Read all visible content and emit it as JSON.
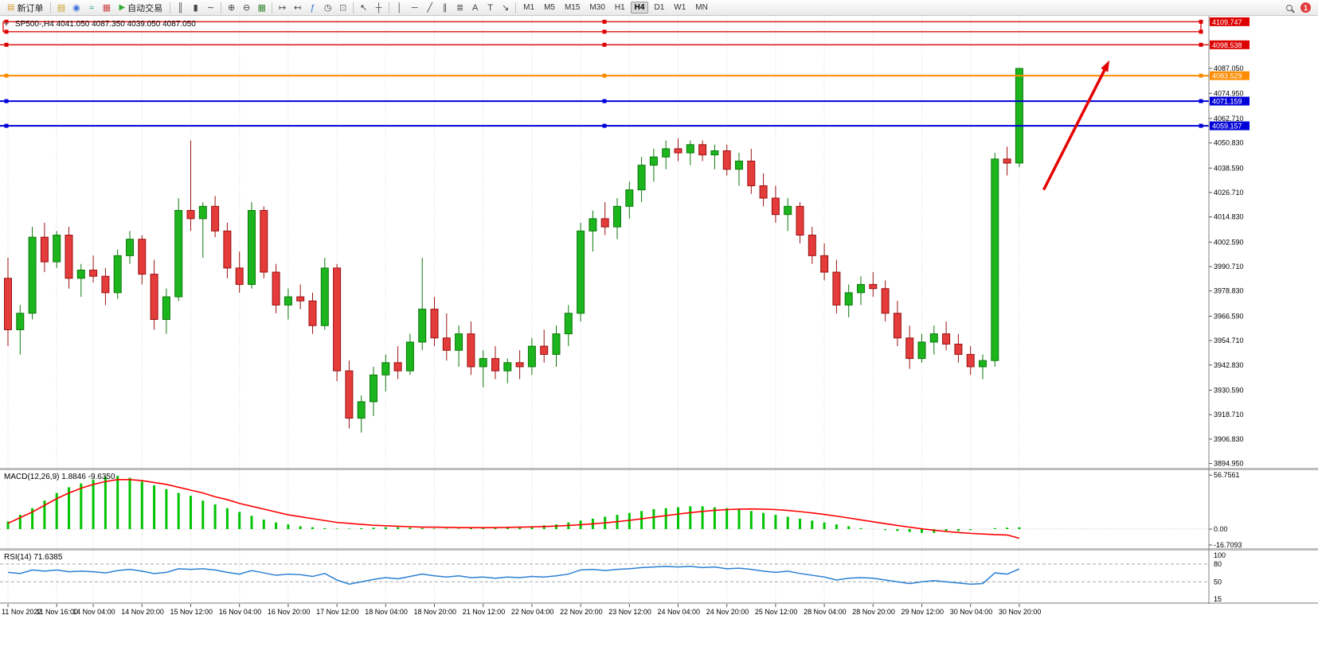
{
  "toolbar": {
    "items": [
      {
        "type": "button",
        "name": "new-order-button",
        "label": "新订单",
        "icon": "▤",
        "icon_color": "#d99a2b"
      },
      {
        "type": "sep"
      },
      {
        "type": "icon",
        "name": "market-watch-icon",
        "glyph": "▤",
        "color": "#c8a228"
      },
      {
        "type": "icon",
        "name": "data-window-icon",
        "glyph": "◉",
        "color": "#3a6fd8"
      },
      {
        "type": "icon",
        "name": "connection-icon",
        "glyph": "≈",
        "color": "#2aa198"
      },
      {
        "type": "icon",
        "name": "market-icon",
        "glyph": "▦",
        "color": "#cc4444"
      },
      {
        "type": "button",
        "name": "algo-trading-button",
        "label": "自动交易",
        "icon": "▶",
        "icon_color": "#2eaa2e"
      },
      {
        "type": "sep"
      },
      {
        "type": "icon",
        "name": "bar-chart-icon",
        "glyph": "║",
        "color": "#444444"
      },
      {
        "type": "icon",
        "name": "candlestick-chart-icon",
        "glyph": "▮",
        "color": "#444444"
      },
      {
        "type": "icon",
        "name": "line-chart-icon",
        "glyph": "∼",
        "color": "#444444"
      },
      {
        "type": "sep"
      },
      {
        "type": "icon",
        "name": "zoom-in-icon",
        "glyph": "⊕",
        "color": "#444444"
      },
      {
        "type": "icon",
        "name": "zoom-out-icon",
        "glyph": "⊖",
        "color": "#444444"
      },
      {
        "type": "icon",
        "name": "tile-windows-icon",
        "glyph": "▦",
        "color": "#3a8f3a"
      },
      {
        "type": "sep"
      },
      {
        "type": "icon",
        "name": "auto-scroll-icon",
        "glyph": "↦",
        "color": "#444444"
      },
      {
        "type": "icon",
        "name": "chart-shift-icon",
        "glyph": "↤",
        "color": "#444444"
      },
      {
        "type": "icon",
        "name": "indicators-icon",
        "glyph": "ƒ",
        "color": "#2a6fd0"
      },
      {
        "type": "icon",
        "name": "period-icon",
        "glyph": "◷",
        "color": "#444444"
      },
      {
        "type": "icon",
        "name": "template-icon",
        "glyph": "⊡",
        "color": "#777777"
      },
      {
        "type": "sep"
      },
      {
        "type": "icon",
        "name": "cursor-icon",
        "glyph": "↖",
        "color": "#444444"
      },
      {
        "type": "icon",
        "name": "crosshair-icon",
        "glyph": "┼",
        "color": "#444444"
      },
      {
        "type": "sep"
      },
      {
        "type": "icon",
        "name": "vertical-line-icon",
        "glyph": "│",
        "color": "#444444"
      },
      {
        "type": "icon",
        "name": "horizontal-line-icon",
        "glyph": "─",
        "color": "#444444"
      },
      {
        "type": "icon",
        "name": "trendline-icon",
        "glyph": "╱",
        "color": "#444444"
      },
      {
        "type": "icon",
        "name": "channel-icon",
        "glyph": "∥",
        "color": "#444444"
      },
      {
        "type": "icon",
        "name": "fibonacci-icon",
        "glyph": "≣",
        "color": "#444444"
      },
      {
        "type": "icon",
        "name": "text-icon",
        "glyph": "A",
        "color": "#444444"
      },
      {
        "type": "icon",
        "name": "label-icon",
        "glyph": "T",
        "color": "#444444"
      },
      {
        "type": "icon",
        "name": "arrows-icon",
        "glyph": "↘",
        "color": "#444444"
      },
      {
        "type": "sep"
      }
    ],
    "timeframes": [
      "M1",
      "M5",
      "M15",
      "M30",
      "H1",
      "H4",
      "D1",
      "W1",
      "MN"
    ],
    "active_timeframe": "H4",
    "notification_count": "1"
  },
  "chart": {
    "collapse_glyph": "▼",
    "header": "SP500-,H4  4041.050 4087.350 4039.050 4087.050",
    "symbol": "SP500-",
    "period": "H4",
    "open": "4041.050",
    "high": "4087.350",
    "low": "4039.050",
    "close": "4087.050"
  },
  "chart_data": {
    "type": "candlestick",
    "title": "SP500-,H4",
    "x_labels": [
      "11 Nov 2022",
      "11 Nov 16:00",
      "14 Nov 04:00",
      "14 Nov 20:00",
      "15 Nov 12:00",
      "16 Nov 04:00",
      "16 Nov 20:00",
      "17 Nov 12:00",
      "18 Nov 04:00",
      "18 Nov 20:00",
      "21 Nov 12:00",
      "22 Nov 04:00",
      "22 Nov 20:00",
      "23 Nov 12:00",
      "24 Nov 04:00",
      "24 Nov 20:00",
      "25 Nov 12:00",
      "28 Nov 04:00",
      "28 Nov 20:00",
      "29 Nov 12:00",
      "30 Nov 04:00",
      "30 Nov 20:00"
    ],
    "x_tick_bars": [
      0,
      4,
      7,
      11,
      15,
      19,
      23,
      27,
      31,
      35,
      39,
      43,
      47,
      51,
      55,
      59,
      63,
      67,
      71,
      75,
      79,
      83
    ],
    "candles": [
      [
        3985,
        3995,
        3952,
        3960
      ],
      [
        3960,
        3972,
        3948,
        3968
      ],
      [
        3968,
        4010,
        3965,
        4005
      ],
      [
        4005,
        4012,
        3988,
        3993
      ],
      [
        3993,
        4008,
        3990,
        4006
      ],
      [
        4006,
        4010,
        3980,
        3985
      ],
      [
        3985,
        3992,
        3976,
        3989
      ],
      [
        3989,
        3996,
        3983,
        3986
      ],
      [
        3986,
        3990,
        3972,
        3978
      ],
      [
        3978,
        3999,
        3975,
        3996
      ],
      [
        3996,
        4008,
        3992,
        4004
      ],
      [
        4004,
        4006,
        3982,
        3987
      ],
      [
        3987,
        3994,
        3960,
        3965
      ],
      [
        3965,
        3980,
        3958,
        3976
      ],
      [
        3976,
        4024,
        3974,
        4018
      ],
      [
        4018,
        4052,
        4008,
        4014
      ],
      [
        4014,
        4022,
        3995,
        4020
      ],
      [
        4020,
        4025,
        4005,
        4008
      ],
      [
        4008,
        4012,
        3985,
        3990
      ],
      [
        3990,
        3998,
        3978,
        3982
      ],
      [
        3982,
        4022,
        3980,
        4018
      ],
      [
        4018,
        4020,
        3985,
        3988
      ],
      [
        3988,
        3992,
        3968,
        3972
      ],
      [
        3972,
        3980,
        3965,
        3976
      ],
      [
        3976,
        3982,
        3970,
        3974
      ],
      [
        3974,
        3978,
        3958,
        3962
      ],
      [
        3962,
        3995,
        3960,
        3990
      ],
      [
        3990,
        3992,
        3935,
        3940
      ],
      [
        3940,
        3945,
        3912,
        3917
      ],
      [
        3917,
        3928,
        3910,
        3925
      ],
      [
        3925,
        3942,
        3918,
        3938
      ],
      [
        3938,
        3948,
        3930,
        3944
      ],
      [
        3944,
        3952,
        3936,
        3940
      ],
      [
        3940,
        3958,
        3938,
        3954
      ],
      [
        3954,
        3995,
        3950,
        3970
      ],
      [
        3970,
        3976,
        3952,
        3956
      ],
      [
        3956,
        3968,
        3945,
        3950
      ],
      [
        3950,
        3962,
        3942,
        3958
      ],
      [
        3958,
        3964,
        3938,
        3942
      ],
      [
        3942,
        3950,
        3932,
        3946
      ],
      [
        3946,
        3952,
        3936,
        3940
      ],
      [
        3940,
        3946,
        3934,
        3944
      ],
      [
        3944,
        3950,
        3936,
        3942
      ],
      [
        3942,
        3956,
        3938,
        3952
      ],
      [
        3952,
        3960,
        3944,
        3948
      ],
      [
        3948,
        3962,
        3942,
        3958
      ],
      [
        3958,
        3972,
        3952,
        3968
      ],
      [
        3968,
        4012,
        3964,
        4008
      ],
      [
        4008,
        4018,
        3998,
        4014
      ],
      [
        4014,
        4022,
        4006,
        4010
      ],
      [
        4010,
        4024,
        4004,
        4020
      ],
      [
        4020,
        4032,
        4014,
        4028
      ],
      [
        4028,
        4044,
        4022,
        4040
      ],
      [
        4040,
        4048,
        4032,
        4044
      ],
      [
        4044,
        4052,
        4038,
        4048
      ],
      [
        4048,
        4053,
        4042,
        4046
      ],
      [
        4046,
        4052,
        4040,
        4050
      ],
      [
        4050,
        4052,
        4042,
        4045
      ],
      [
        4045,
        4050,
        4038,
        4047
      ],
      [
        4047,
        4050,
        4035,
        4038
      ],
      [
        4038,
        4046,
        4030,
        4042
      ],
      [
        4042,
        4048,
        4026,
        4030
      ],
      [
        4030,
        4036,
        4020,
        4024
      ],
      [
        4024,
        4030,
        4012,
        4016
      ],
      [
        4016,
        4024,
        4008,
        4020
      ],
      [
        4020,
        4022,
        4002,
        4006
      ],
      [
        4006,
        4010,
        3992,
        3996
      ],
      [
        3996,
        4002,
        3984,
        3988
      ],
      [
        3988,
        3994,
        3968,
        3972
      ],
      [
        3972,
        3982,
        3966,
        3978
      ],
      [
        3978,
        3986,
        3972,
        3982
      ],
      [
        3982,
        3988,
        3976,
        3980
      ],
      [
        3980,
        3984,
        3964,
        3968
      ],
      [
        3968,
        3974,
        3952,
        3956
      ],
      [
        3956,
        3962,
        3941,
        3946
      ],
      [
        3946,
        3958,
        3944,
        3954
      ],
      [
        3954,
        3962,
        3948,
        3958
      ],
      [
        3958,
        3964,
        3950,
        3953
      ],
      [
        3953,
        3958,
        3944,
        3948
      ],
      [
        3948,
        3952,
        3938,
        3942
      ],
      [
        3942,
        3948,
        3936,
        3945
      ],
      [
        3945,
        4046,
        3942,
        4043
      ],
      [
        4043,
        4049,
        4035,
        4041
      ],
      [
        4041.05,
        4087.35,
        4039.05,
        4087.05
      ]
    ],
    "price_axis": {
      "min": 3892.8,
      "max": 4112.6,
      "gridline_labels": [
        "4087.050",
        "4074.950",
        "4062.710",
        "4050.830",
        "4038.590",
        "4026.710",
        "4014.830",
        "4002.590",
        "3990.710",
        "3978.830",
        "3966.590",
        "3954.710",
        "3942.830",
        "3930.590",
        "3918.710",
        "3906.830",
        "3894.950"
      ]
    },
    "style": {
      "up_color": "#1db51d",
      "up_stroke": "#0b7a0b",
      "down_color": "#e43b3b",
      "down_stroke": "#9b1212"
    },
    "overlays": {
      "hlines": [
        {
          "type": "band",
          "label": "4109.747",
          "price_top": 4109.747,
          "price_bottom": 4104.9,
          "color": "#dd0000"
        },
        {
          "type": "line",
          "label": "4098.538",
          "price": 4098.538,
          "color": "#dd0000",
          "width": 1.4
        },
        {
          "type": "line",
          "label": "4083.529",
          "price": 4083.529,
          "color": "#ff8c00",
          "width": 2
        },
        {
          "type": "line",
          "label": "4071.159",
          "price": 4071.159,
          "color": "#0000d8",
          "width": 2
        },
        {
          "type": "line",
          "label": "4059.157",
          "price": 4059.157,
          "color": "#0000d8",
          "width": 2
        }
      ],
      "arrow": {
        "from_bar": 85,
        "from_price": 4028,
        "to_bar": 90.4,
        "to_price": 4091,
        "color": "#e50000"
      }
    },
    "indicators": [
      {
        "name": "MACD",
        "label": "MACD(12,26,9) 1.8846 -9.6350",
        "axis_labels": [
          "56.7561",
          "0.00",
          "-16.7093"
        ],
        "hist_color": "#00c400",
        "signal_color": "#ff0000",
        "histogram": [
          8,
          15,
          22,
          30,
          38,
          44,
          48,
          52,
          55,
          56,
          54,
          50,
          46,
          42,
          38,
          35,
          30,
          26,
          22,
          18,
          14,
          10,
          7,
          5,
          3,
          2,
          1,
          0.5,
          0.5,
          1,
          1.5,
          2,
          2,
          1.5,
          1,
          0.5,
          0.5,
          0.5,
          1,
          1,
          1.5,
          2,
          2.5,
          3,
          4,
          5,
          7,
          9,
          11,
          13,
          15,
          17,
          19,
          21,
          22,
          23,
          24,
          24,
          23,
          22,
          21,
          19,
          17,
          15,
          13,
          11,
          9,
          7,
          5,
          3,
          1,
          0,
          -1,
          -2,
          -3,
          -4,
          -4,
          -3,
          -2,
          -1,
          0,
          1,
          1.5,
          1.9
        ],
        "signal": [
          6,
          12,
          18,
          25,
          32,
          38,
          43,
          47,
          50,
          52,
          52,
          51,
          49,
          47,
          44,
          41,
          38,
          34,
          31,
          27,
          24,
          21,
          18,
          15,
          13,
          11,
          9,
          7,
          6,
          5,
          4,
          3.5,
          3,
          2.5,
          2,
          2,
          1.8,
          1.6,
          1.5,
          1.5,
          1.6,
          1.8,
          2,
          2.3,
          2.7,
          3.2,
          3.8,
          4.6,
          5.5,
          6.6,
          7.8,
          9.2,
          10.8,
          12.5,
          14.2,
          15.8,
          17.3,
          18.6,
          19.7,
          20.5,
          21,
          21.2,
          21,
          20.5,
          19.6,
          18.4,
          17,
          15.4,
          13.6,
          11.7,
          9.7,
          7.7,
          5.7,
          3.8,
          2,
          0.3,
          -1.2,
          -2.5,
          -3.6,
          -4.5,
          -5.2,
          -5.8,
          -6.2,
          -9.6
        ]
      },
      {
        "name": "RSI",
        "label": "RSI(14) 71.6385",
        "axis_labels": [
          "100",
          "80",
          "50",
          "15"
        ],
        "levels": [
          80,
          50
        ],
        "color": "#2a7fd4",
        "values": [
          66,
          64,
          70,
          68,
          70,
          67,
          68,
          67,
          65,
          69,
          71,
          68,
          64,
          66,
          72,
          71,
          72,
          70,
          66,
          63,
          69,
          65,
          61,
          63,
          62,
          59,
          64,
          53,
          46,
          50,
          54,
          57,
          55,
          59,
          63,
          60,
          58,
          60,
          57,
          58,
          56,
          58,
          57,
          59,
          58,
          60,
          63,
          70,
          71,
          69,
          71,
          72,
          74,
          75,
          76,
          75,
          76,
          74,
          75,
          72,
          73,
          71,
          68,
          66,
          68,
          64,
          61,
          58,
          53,
          56,
          57,
          56,
          53,
          50,
          47,
          50,
          52,
          50,
          48,
          46,
          47,
          65,
          63,
          71.6
        ]
      }
    ]
  }
}
